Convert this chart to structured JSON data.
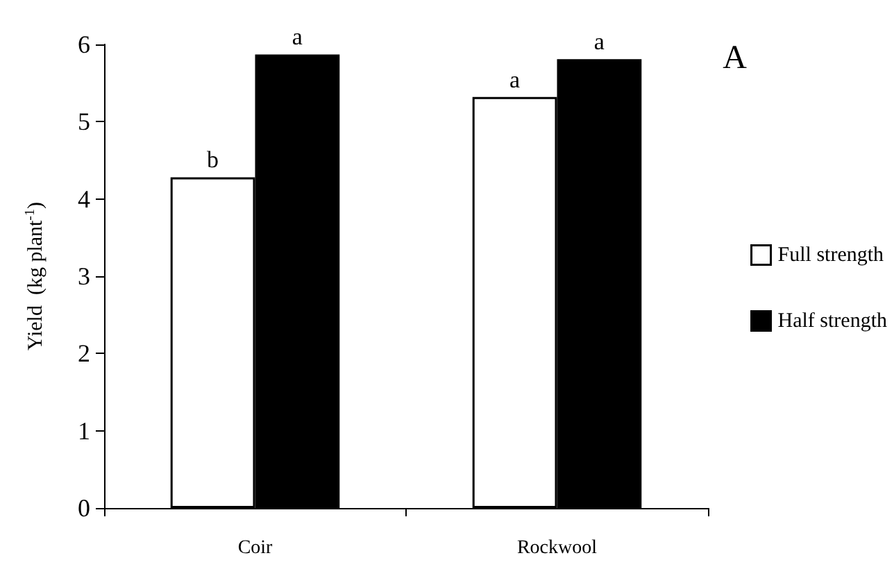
{
  "chart_data": {
    "type": "bar",
    "ylabel": "Yield  (kg plant$^{-1}$)",
    "categories": [
      "Coir",
      "Rockwool"
    ],
    "series": [
      {
        "name": "Full strength",
        "color": "#ffffff",
        "values": [
          4.28,
          5.32
        ]
      },
      {
        "name": "Half strength",
        "color": "#000000",
        "values": [
          5.87,
          5.81
        ]
      }
    ],
    "ylim": [
      0,
      6
    ],
    "yticks": [
      0,
      1,
      2,
      3,
      4,
      5,
      6
    ],
    "grid": false,
    "legend": "right",
    "annotations": [
      {
        "text": "b",
        "x": "Coir",
        "y": 4.28
      },
      {
        "text": "a",
        "x": "Coir",
        "y": 5.87
      },
      {
        "text": "a",
        "x": "Rockwool",
        "y": 5.32
      },
      {
        "text": "a",
        "x": "Rockwool",
        "y": 5.81
      },
      "A"
    ]
  }
}
